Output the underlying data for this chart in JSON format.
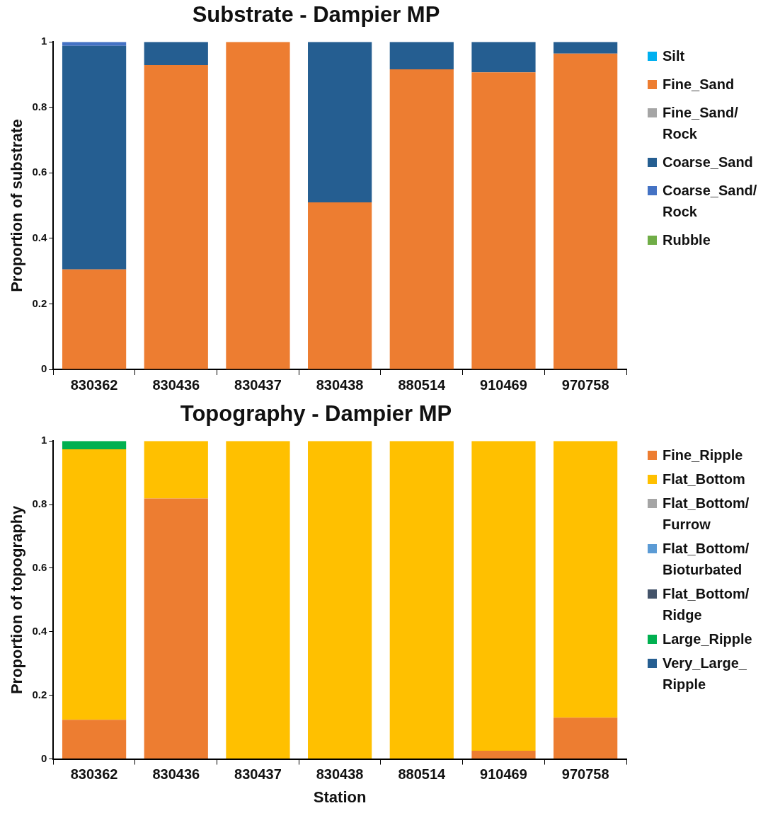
{
  "chart_data": [
    {
      "type": "bar",
      "title": "Substrate - Dampier MP",
      "ylabel": "Proportion of substrate",
      "categories": [
        "830362",
        "830436",
        "830437",
        "830438",
        "880514",
        "910469",
        "970758"
      ],
      "stacked": true,
      "ylim": [
        0,
        1
      ],
      "yticks": [
        0,
        0.2,
        0.4,
        0.6,
        0.8,
        1
      ],
      "grid": false,
      "legend": "right",
      "series": [
        {
          "name": "Silt",
          "color": "#00b0f0",
          "values": [
            0,
            0,
            0,
            0,
            0,
            0,
            0
          ]
        },
        {
          "name": "Fine_Sand",
          "color": "#ed7d31",
          "values": [
            0.305,
            0.929,
            1,
            0.51,
            0.916,
            0.907,
            0.964
          ]
        },
        {
          "name": "Fine_Sand/Rock",
          "color": "#a5a5a5",
          "values": [
            0,
            0,
            0,
            0,
            0,
            0,
            0
          ]
        },
        {
          "name": "Coarse_Sand",
          "color": "#255e91",
          "values": [
            0.683,
            0.071,
            0,
            0.49,
            0.084,
            0.093,
            0.036
          ]
        },
        {
          "name": "Coarse_Sand/Rock",
          "color": "#4472c4",
          "values": [
            0.012,
            0,
            0,
            0,
            0,
            0,
            0
          ]
        },
        {
          "name": "Rubble",
          "color": "#70ad47",
          "values": [
            0,
            0,
            0,
            0,
            0,
            0,
            0
          ]
        }
      ]
    },
    {
      "type": "bar",
      "title": "Topography - Dampier MP",
      "ylabel": "Proportion of topography",
      "xlabel": "Station",
      "categories": [
        "830362",
        "830436",
        "830437",
        "830438",
        "880514",
        "910469",
        "970758"
      ],
      "stacked": true,
      "ylim": [
        0,
        1
      ],
      "yticks": [
        0,
        0.2,
        0.4,
        0.6,
        0.8,
        1
      ],
      "grid": false,
      "legend": "right",
      "series": [
        {
          "name": "Fine_Ripple",
          "color": "#ed7d31",
          "values": [
            0.123,
            0.819,
            0,
            0,
            0,
            0.026,
            0.13
          ]
        },
        {
          "name": "Flat_Bottom",
          "color": "#ffc000",
          "values": [
            0.851,
            0.181,
            1,
            1,
            1,
            0.974,
            0.87
          ]
        },
        {
          "name": "Flat_Bottom/Furrow",
          "color": "#a5a5a5",
          "values": [
            0,
            0,
            0,
            0,
            0,
            0,
            0
          ]
        },
        {
          "name": "Flat_Bottom/Bioturbated",
          "color": "#5b9bd5",
          "values": [
            0,
            0,
            0,
            0,
            0,
            0,
            0
          ]
        },
        {
          "name": "Flat_Bottom/Ridge",
          "color": "#44546a",
          "values": [
            0,
            0,
            0,
            0,
            0,
            0,
            0
          ]
        },
        {
          "name": "Large_Ripple",
          "color": "#00b050",
          "values": [
            0.026,
            0,
            0,
            0,
            0,
            0,
            0
          ]
        },
        {
          "name": "Very_Large_Ripple",
          "color": "#255e91",
          "values": [
            0,
            0,
            0,
            0,
            0,
            0,
            0
          ]
        }
      ]
    }
  ]
}
